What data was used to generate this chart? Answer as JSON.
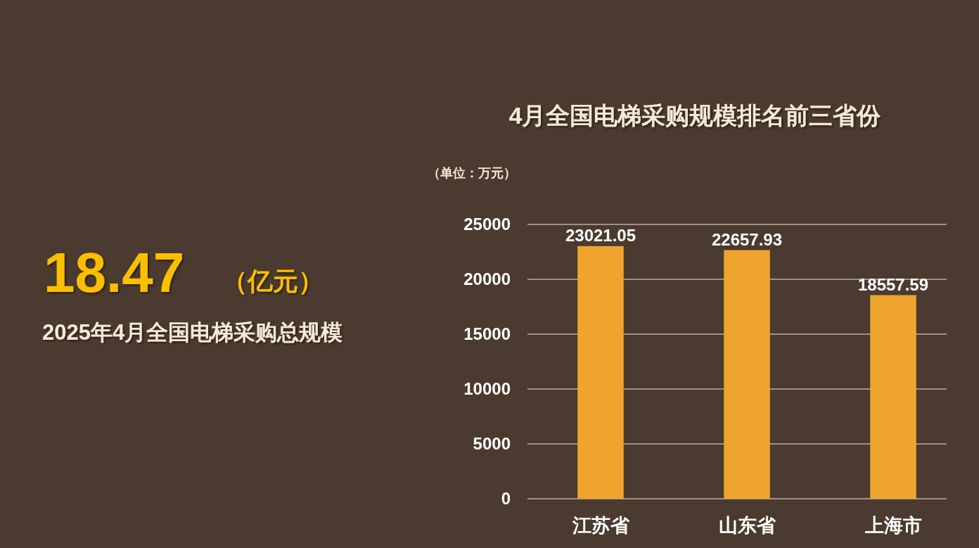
{
  "chart_data": [
    {
      "type": "other",
      "annotations": [
        "18.47",
        "（亿元）",
        "2025年4月全国电梯采购总规模"
      ]
    },
    {
      "type": "bar",
      "title": "4月全国电梯采购规模排名前三省份",
      "ylabel": "（单位：万元）",
      "categories": [
        "江苏省",
        "山东省",
        "上海市"
      ],
      "values": [
        23021.05,
        22657.93,
        18557.59
      ],
      "color": "#eea42f",
      "ylim": [
        0,
        25000
      ],
      "yticks": [
        0,
        5000,
        10000,
        15000,
        20000,
        25000
      ],
      "grid": "y",
      "data_labels": true
    }
  ]
}
